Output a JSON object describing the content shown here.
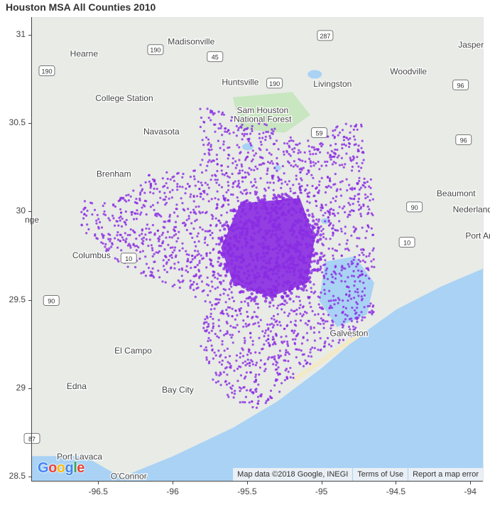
{
  "title": "Houston MSA All Counties 2010",
  "map": {
    "type": "scatter-on-map",
    "point_color": "#8a2be2",
    "water_color": "#a9d2f5",
    "land_color": "#e8ebe6",
    "park_color": "#c8e6c0",
    "attribution": {
      "map_data": "Map data ©2018 Google, INEGI",
      "terms": "Terms of Use",
      "report": "Report a map error"
    },
    "logo": "Google",
    "place_labels": [
      {
        "text": "Madisonville",
        "lon": -95.88,
        "lat": 30.95
      },
      {
        "text": "Hearne",
        "lon": -96.6,
        "lat": 30.88
      },
      {
        "text": "Jasper",
        "lon": -94.0,
        "lat": 30.93
      },
      {
        "text": "Huntsville",
        "lon": -95.55,
        "lat": 30.72
      },
      {
        "text": "Livingston",
        "lon": -94.93,
        "lat": 30.71
      },
      {
        "text": "Woodville",
        "lon": -94.42,
        "lat": 30.78
      },
      {
        "text": "College Station",
        "lon": -96.33,
        "lat": 30.63
      },
      {
        "text": "Sam Houston",
        "lon": -95.4,
        "lat": 30.56
      },
      {
        "text": "National Forest",
        "lon": -95.4,
        "lat": 30.51
      },
      {
        "text": "Navasota",
        "lon": -96.08,
        "lat": 30.44
      },
      {
        "text": "Brenham",
        "lon": -96.4,
        "lat": 30.2
      },
      {
        "text": "Beaumont",
        "lon": -94.1,
        "lat": 30.09
      },
      {
        "text": "Nederland",
        "lon": -93.99,
        "lat": 30.0
      },
      {
        "text": "Port Ar",
        "lon": -93.95,
        "lat": 29.85
      },
      {
        "text": "Columbus",
        "lon": -96.55,
        "lat": 29.74
      },
      {
        "text": "Galveston",
        "lon": -94.82,
        "lat": 29.3
      },
      {
        "text": "El Campo",
        "lon": -96.27,
        "lat": 29.2
      },
      {
        "text": "Bay City",
        "lon": -95.97,
        "lat": 28.98
      },
      {
        "text": "Edna",
        "lon": -96.65,
        "lat": 29.0
      },
      {
        "text": "Port Lavaca",
        "lon": -96.63,
        "lat": 28.6
      },
      {
        "text": "O'Connor",
        "lon": -96.3,
        "lat": 28.49
      },
      {
        "text": "nge",
        "lon": -96.95,
        "lat": 29.94
      }
    ],
    "highway_shields": [
      {
        "text": "287",
        "lon": -94.98,
        "lat": 31.0
      },
      {
        "text": "190",
        "lon": -96.12,
        "lat": 30.92
      },
      {
        "text": "45",
        "lon": -95.72,
        "lat": 30.88
      },
      {
        "text": "190",
        "lon": -96.85,
        "lat": 30.8
      },
      {
        "text": "190",
        "lon": -95.32,
        "lat": 30.73
      },
      {
        "text": "96",
        "lon": -94.07,
        "lat": 30.72
      },
      {
        "text": "59",
        "lon": -95.02,
        "lat": 30.45
      },
      {
        "text": "96",
        "lon": -94.05,
        "lat": 30.41
      },
      {
        "text": "90",
        "lon": -94.38,
        "lat": 30.03
      },
      {
        "text": "10",
        "lon": -94.43,
        "lat": 29.83
      },
      {
        "text": "10",
        "lon": -96.3,
        "lat": 29.74
      },
      {
        "text": "90",
        "lon": -96.82,
        "lat": 29.5
      },
      {
        "text": "87",
        "lon": -96.95,
        "lat": 28.72
      }
    ]
  },
  "chart_data": {
    "type": "scatter",
    "title": "Houston MSA All Counties 2010",
    "xlabel": "",
    "ylabel": "",
    "xlim": [
      -96.95,
      -93.92
    ],
    "ylim": [
      28.48,
      31.1
    ],
    "xticks": [
      -96.5,
      -96,
      -95.5,
      -95,
      -94.5,
      -94
    ],
    "xtick_labels": [
      "-96.5",
      "-96",
      "-95.5",
      "-95",
      "-94.5",
      "-94"
    ],
    "yticks": [
      28.5,
      29,
      29.5,
      30,
      30.5,
      31
    ],
    "ytick_labels": [
      "28.5",
      "29",
      "29.5",
      "30",
      "30.5",
      "31"
    ],
    "grid": false,
    "series": [
      {
        "color": "#8a2be2",
        "region_outline_lonlat": [
          [
            -96.62,
            30.07
          ],
          [
            -96.4,
            30.05
          ],
          [
            -96.15,
            30.22
          ],
          [
            -95.82,
            30.24
          ],
          [
            -95.82,
            30.62
          ],
          [
            -95.62,
            30.55
          ],
          [
            -95.38,
            30.5
          ],
          [
            -95.2,
            30.42
          ],
          [
            -95.05,
            30.4
          ],
          [
            -94.88,
            30.5
          ],
          [
            -94.72,
            30.5
          ],
          [
            -94.72,
            30.2
          ],
          [
            -94.55,
            30.15
          ],
          [
            -94.58,
            30.0
          ],
          [
            -94.45,
            29.85
          ],
          [
            -94.62,
            29.72
          ],
          [
            -94.72,
            29.55
          ],
          [
            -94.5,
            29.55
          ],
          [
            -94.8,
            29.3
          ],
          [
            -95.0,
            29.2
          ],
          [
            -95.2,
            29.05
          ],
          [
            -95.42,
            28.88
          ],
          [
            -95.58,
            28.92
          ],
          [
            -95.72,
            29.02
          ],
          [
            -95.82,
            29.25
          ],
          [
            -95.78,
            29.48
          ],
          [
            -95.92,
            29.55
          ],
          [
            -96.12,
            29.62
          ],
          [
            -96.32,
            29.68
          ],
          [
            -96.62,
            29.9
          ]
        ]
      }
    ]
  }
}
